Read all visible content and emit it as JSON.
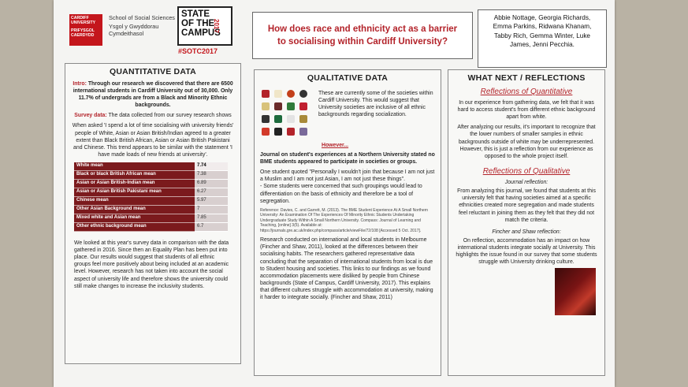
{
  "header": {
    "logo": {
      "university": "CARDIFF UNIVERSITY",
      "university_welsh": "PRIFYSGOL CAERDYDD",
      "school": "School of Social Sciences",
      "school_welsh": "Ysgol y Gwyddorau Cymdeithasol"
    },
    "campaign": {
      "title": "STATE OF THE CAMPUS",
      "year": "2017",
      "hashtag": "#SOTC2017"
    },
    "title": "How does race and ethnicity act as a barrier to socialising within Cardiff University?",
    "authors": "Abbie Nottage, Georgia Richards, Emma Parkins, Ridwana Khanam, Tabby Rich, Gemma Winter, Luke James, Jenni Pecchia."
  },
  "quantitative": {
    "heading": "QUANTITATIVE DATA",
    "intro_label": "Intro:",
    "intro": "Through our research we discovered that there are 6500 international students in Cardiff University out of 30,000. Only 11.7% of undergrads are from a Black and Minority Ethnic backgrounds.",
    "survey_label": "Survey data:",
    "survey": "The data collected from our survey research shows",
    "finding": "When asked 'I spend a lot of time socialising with university friends' people of White, Asian or Asian British/Indian agreed to a greater extent than Black British African, Asian or Asian British Pakistani and Chinese. This trend appears to be similar with the statement 'I have made loads of new friends at university'.",
    "table": {
      "rows": [
        [
          "White mean",
          7.74
        ],
        [
          "Black or black British African mean",
          7.38
        ],
        [
          "Asian or Asian British-Indian mean",
          6.89
        ],
        [
          "Asian or Asian British Pakistani mean",
          6.27
        ],
        [
          "Chinese mean",
          5.97
        ],
        [
          "Other Asian Background mean",
          7
        ],
        [
          "Mixed white and Asian mean",
          7.85
        ],
        [
          "Other ethnic background mean",
          6.7
        ]
      ]
    },
    "conclusion": "We looked at this year's survey data in comparison with the data gathered in 2016. Since then an Equality Plan has been put into place. Our results would suggest that students of all ethnic groups feel more positively about being included at an academic level. However, research has not taken into account the social aspect of university life and therefore shows the university could still make changes to increase the inclusivity students."
  },
  "qualitative": {
    "heading": "QUALITATIVE DATA",
    "societies": "These are currently some of the societies within Cardiff University. This would suggest that University societies are inclusive of all ethnic backgrounds regarding socialization.",
    "however": "However...",
    "journal": "Journal on student's experiences at a Northern University stated no BME students appeared to participate in societies or groups.",
    "quote": "One student quoted \"Personally I wouldn't join that because I am not just a Muslim and I am not just Asian, I am not just these things\".",
    "concern": "- Some students were concerned that such groupings would lead to differentiation on the basis of ethnicity and therefore be a tool of segregation.",
    "reference": "Reference: Davies, C. and Garrett, M. (2013). The BME Student Experience At A Small Northern University: An Examination Of The Experiences Of Minority Ethnic Students Undertaking Undergraduate Study Within A Small Northern University. Compass: Journal of Learning and Teaching, [online] 3(5). Available at: https://journals.gre.ac.uk/index.php/compass/article/viewFile/72/108 [Accessed 5 Oct. 2017].",
    "research": "Research conducted on international and local students in Melbourne (Fincher and Shaw, 2011), looked at the differences between their socialising habits. The researchers gathered representative data concluding that the separation of international students from local is due to Student housing and societies. This links to our findings as we found accommodation placements were disliked by people from Chinese backgrounds (State of Campus, Cardiff University, 2017). This explains that different cultures struggle with accommodation at university, making it harder to integrate socially. (Fincher and Shaw, 2011)"
  },
  "reflections": {
    "heading": "WHAT NEXT / REFLECTIONS",
    "quant_heading": "Reflections of Quantitative",
    "quant_1": "In our experience from gathering data, we felt that it was hard to access student's from different ethnic background apart from white.",
    "quant_2": "After analyzing our results, it's important to recognize that the lower numbers of smaller samples in ethnic backgrounds outside of white may be underrepresented. However, this is just a reflection from our experience as opposed to the whole project itself.",
    "qual_heading": "Reflections of Qualitative",
    "journal_label": "Journal reflection:",
    "journal": "From analyzing this journal, we found that students at this university felt that having societies aimed at a specific ethnicities created more segregation and made students feel reluctant in joining them as they felt that they did not match the criteria.",
    "fincher_label": "Fincher and Shaw reflection:",
    "fincher": "On reflection, accommodation has an impact on how international students integrate socially at University. This highlights the issue found in our survey that some students struggle with University drinking culture."
  }
}
